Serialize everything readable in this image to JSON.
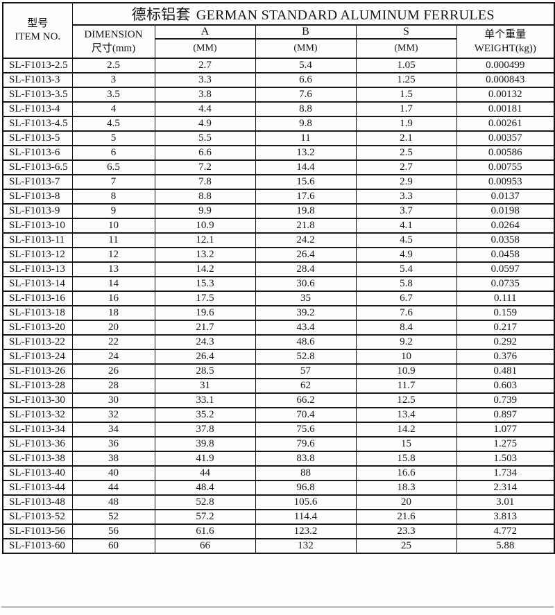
{
  "table": {
    "title_cn": "德标铝套",
    "title_en": "GERMAN STANDARD ALUMINUM FERRULES",
    "header": {
      "item_no_cn": "型号",
      "item_no_en": "ITEM NO.",
      "dimension_line1": "DIMENSION",
      "dimension_line2": "尺寸(mm)",
      "a_label": "A",
      "b_label": "B",
      "s_label": "S",
      "unit_mm": "(MM)",
      "weight_cn": "单个重量",
      "weight_en": "WEIGHT(kg))"
    },
    "columns": [
      "item_no",
      "dimension_mm",
      "a_mm",
      "b_mm",
      "s_mm",
      "weight_kg"
    ],
    "rows": [
      [
        "SL-F1013-2.5",
        "2.5",
        "2.7",
        "5.4",
        "1.05",
        "0.000499"
      ],
      [
        "SL-F1013-3",
        "3",
        "3.3",
        "6.6",
        "1.25",
        "0.000843"
      ],
      [
        "SL-F1013-3.5",
        "3.5",
        "3.8",
        "7.6",
        "1.5",
        "0.00132"
      ],
      [
        "SL-F1013-4",
        "4",
        "4.4",
        "8.8",
        "1.7",
        "0.00181"
      ],
      [
        "SL-F1013-4.5",
        "4.5",
        "4.9",
        "9.8",
        "1.9",
        "0.00261"
      ],
      [
        "SL-F1013-5",
        "5",
        "5.5",
        "11",
        "2.1",
        "0.00357"
      ],
      [
        "SL-F1013-6",
        "6",
        "6.6",
        "13.2",
        "2.5",
        "0.00586"
      ],
      [
        "SL-F1013-6.5",
        "6.5",
        "7.2",
        "14.4",
        "2.7",
        "0.00755"
      ],
      [
        "SL-F1013-7",
        "7",
        "7.8",
        "15.6",
        "2.9",
        "0.00953"
      ],
      [
        "SL-F1013-8",
        "8",
        "8.8",
        "17.6",
        "3.3",
        "0.0137"
      ],
      [
        "SL-F1013-9",
        "9",
        "9.9",
        "19.8",
        "3.7",
        "0.0198"
      ],
      [
        "SL-F1013-10",
        "10",
        "10.9",
        "21.8",
        "4.1",
        "0.0264"
      ],
      [
        "SL-F1013-11",
        "11",
        "12.1",
        "24.2",
        "4.5",
        "0.0358"
      ],
      [
        "SL-F1013-12",
        "12",
        "13.2",
        "26.4",
        "4.9",
        "0.0458"
      ],
      [
        "SL-F1013-13",
        "13",
        "14.2",
        "28.4",
        "5.4",
        "0.0597"
      ],
      [
        "SL-F1013-14",
        "14",
        "15.3",
        "30.6",
        "5.8",
        "0.0735"
      ],
      [
        "SL-F1013-16",
        "16",
        "17.5",
        "35",
        "6.7",
        "0.111"
      ],
      [
        "SL-F1013-18",
        "18",
        "19.6",
        "39.2",
        "7.6",
        "0.159"
      ],
      [
        "SL-F1013-20",
        "20",
        "21.7",
        "43.4",
        "8.4",
        "0.217"
      ],
      [
        "SL-F1013-22",
        "22",
        "24.3",
        "48.6",
        "9.2",
        "0.292"
      ],
      [
        "SL-F1013-24",
        "24",
        "26.4",
        "52.8",
        "10",
        "0.376"
      ],
      [
        "SL-F1013-26",
        "26",
        "28.5",
        "57",
        "10.9",
        "0.481"
      ],
      [
        "SL-F1013-28",
        "28",
        "31",
        "62",
        "11.7",
        "0.603"
      ],
      [
        "SL-F1013-30",
        "30",
        "33.1",
        "66.2",
        "12.5",
        "0.739"
      ],
      [
        "SL-F1013-32",
        "32",
        "35.2",
        "70.4",
        "13.4",
        "0.897"
      ],
      [
        "SL-F1013-34",
        "34",
        "37.8",
        "75.6",
        "14.2",
        "1.077"
      ],
      [
        "SL-F1013-36",
        "36",
        "39.8",
        "79.6",
        "15",
        "1.275"
      ],
      [
        "SL-F1013-38",
        "38",
        "41.9",
        "83.8",
        "15.8",
        "1.503"
      ],
      [
        "SL-F1013-40",
        "40",
        "44",
        "88",
        "16.6",
        "1.734"
      ],
      [
        "SL-F1013-44",
        "44",
        "48.4",
        "96.8",
        "18.3",
        "2.314"
      ],
      [
        "SL-F1013-48",
        "48",
        "52.8",
        "105.6",
        "20",
        "3.01"
      ],
      [
        "SL-F1013-52",
        "52",
        "57.2",
        "114.4",
        "21.6",
        "3.813"
      ],
      [
        "SL-F1013-56",
        "56",
        "61.6",
        "123.2",
        "23.3",
        "4.772"
      ],
      [
        "SL-F1013-60",
        "60",
        "66",
        "132",
        "25",
        "5.88"
      ]
    ]
  }
}
